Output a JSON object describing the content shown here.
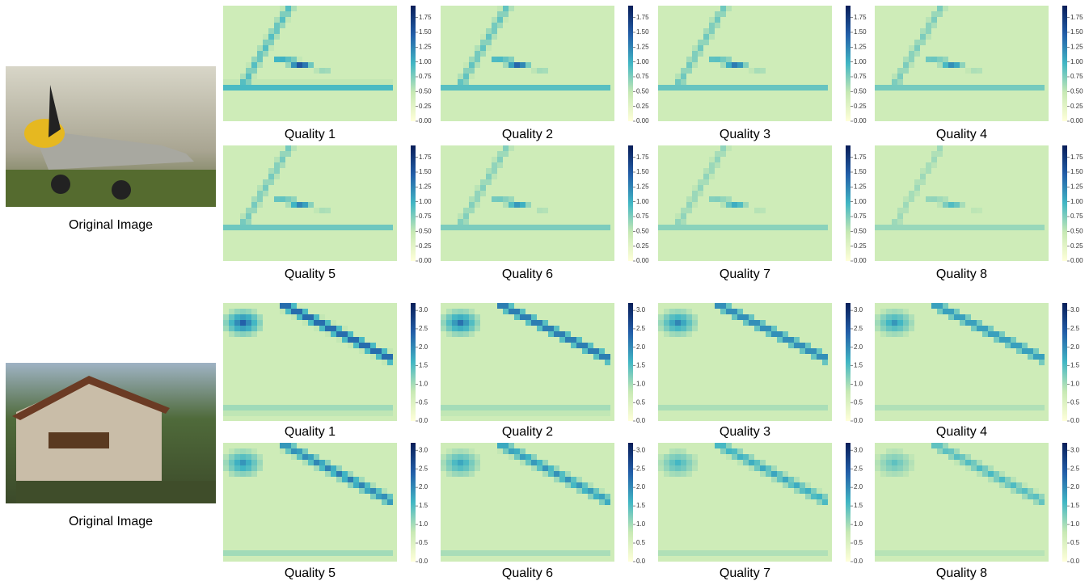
{
  "panels": [
    {
      "original_caption": "Original Image",
      "colorbar": {
        "lim": [
          0,
          1.95
        ],
        "ticks": [
          {
            "value": 0,
            "label": "0.00"
          },
          0.25,
          {
            "value": 0.5,
            "label": "0.50"
          },
          0.75,
          {
            "value": 1,
            "label": "1.00"
          },
          1.25,
          {
            "value": 1.5,
            "label": "1.50"
          },
          1.75
        ]
      },
      "heatmaps": [
        {
          "caption": "Quality 1"
        },
        {
          "caption": "Quality 2"
        },
        {
          "caption": "Quality 3"
        },
        {
          "caption": "Quality 4"
        },
        {
          "caption": "Quality 5"
        },
        {
          "caption": "Quality 6"
        },
        {
          "caption": "Quality 7"
        },
        {
          "caption": "Quality 8"
        }
      ]
    },
    {
      "original_caption": "Original Image",
      "colorbar": {
        "lim": [
          0,
          3.2
        ],
        "ticks": [
          {
            "value": 0,
            "label": "0.0"
          },
          0.5,
          {
            "value": 1,
            "label": "1.0"
          },
          1.5,
          {
            "value": 2,
            "label": "2.0"
          },
          2.5,
          {
            "value": 3,
            "label": "3.0"
          }
        ]
      },
      "heatmaps": [
        {
          "caption": "Quality 1"
        },
        {
          "caption": "Quality 2"
        },
        {
          "caption": "Quality 3"
        },
        {
          "caption": "Quality 4"
        },
        {
          "caption": "Quality 5"
        },
        {
          "caption": "Quality 6"
        },
        {
          "caption": "Quality 7"
        },
        {
          "caption": "Quality 8"
        }
      ]
    }
  ]
}
